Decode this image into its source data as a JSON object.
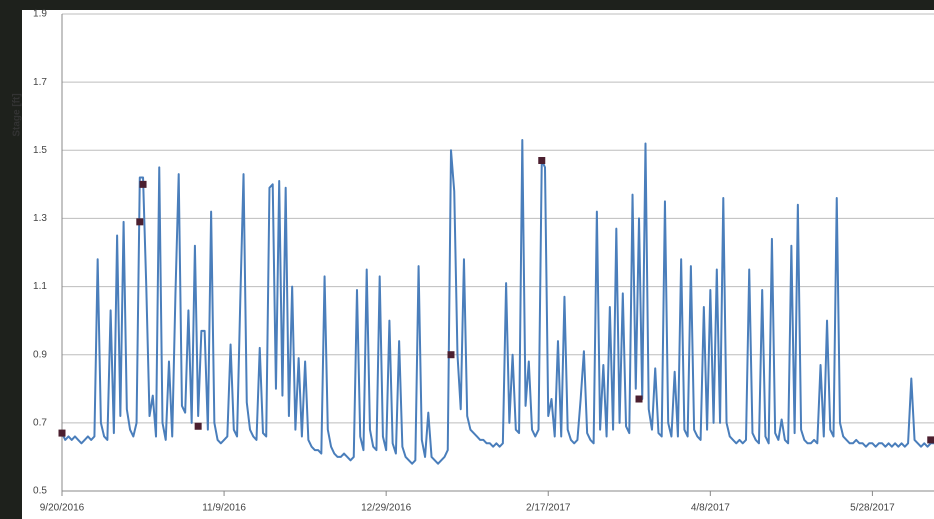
{
  "chart_data": {
    "type": "line",
    "y_label": "Stage [ft]",
    "xlim": [
      "2016-09-20",
      "2017-06-16"
    ],
    "xticks": [
      {
        "value": "2016-09-20",
        "label": "9/20/2016"
      },
      {
        "value": "2016-11-09",
        "label": "11/9/2016"
      },
      {
        "value": "2016-12-29",
        "label": "12/29/2016"
      },
      {
        "value": "2017-02-17",
        "label": "2/17/2017"
      },
      {
        "value": "2017-04-08",
        "label": "4/8/2017"
      },
      {
        "value": "2017-05-28",
        "label": "5/28/2017"
      }
    ],
    "ylim": [
      0.5,
      1.9
    ],
    "yticks": [
      0.5,
      0.7,
      0.9,
      1.1,
      1.3,
      1.5,
      1.7,
      1.9
    ],
    "grid": true,
    "series": [
      {
        "style": "line",
        "color": "#4a7ebb",
        "x": [
          "2016-09-20",
          "2016-09-21",
          "2016-09-22",
          "2016-09-23",
          "2016-09-24",
          "2016-09-25",
          "2016-09-26",
          "2016-09-27",
          "2016-09-28",
          "2016-09-29",
          "2016-09-30",
          "2016-10-01",
          "2016-10-02",
          "2016-10-03",
          "2016-10-04",
          "2016-10-05",
          "2016-10-06",
          "2016-10-07",
          "2016-10-08",
          "2016-10-09",
          "2016-10-10",
          "2016-10-11",
          "2016-10-12",
          "2016-10-13",
          "2016-10-14",
          "2016-10-15",
          "2016-10-16",
          "2016-10-17",
          "2016-10-18",
          "2016-10-19",
          "2016-10-20",
          "2016-10-21",
          "2016-10-22",
          "2016-10-23",
          "2016-10-24",
          "2016-10-25",
          "2016-10-26",
          "2016-10-27",
          "2016-10-28",
          "2016-10-29",
          "2016-10-30",
          "2016-10-31",
          "2016-11-01",
          "2016-11-02",
          "2016-11-03",
          "2016-11-04",
          "2016-11-05",
          "2016-11-06",
          "2016-11-07",
          "2016-11-08",
          "2016-11-09",
          "2016-11-10",
          "2016-11-11",
          "2016-11-12",
          "2016-11-13",
          "2016-11-14",
          "2016-11-15",
          "2016-11-16",
          "2016-11-17",
          "2016-11-18",
          "2016-11-19",
          "2016-11-20",
          "2016-11-21",
          "2016-11-22",
          "2016-11-23",
          "2016-11-24",
          "2016-11-25",
          "2016-11-26",
          "2016-11-27",
          "2016-11-28",
          "2016-11-29",
          "2016-11-30",
          "2016-12-01",
          "2016-12-02",
          "2016-12-03",
          "2016-12-04",
          "2016-12-05",
          "2016-12-06",
          "2016-12-07",
          "2016-12-08",
          "2016-12-09",
          "2016-12-10",
          "2016-12-11",
          "2016-12-12",
          "2016-12-13",
          "2016-12-14",
          "2016-12-15",
          "2016-12-16",
          "2016-12-17",
          "2016-12-18",
          "2016-12-19",
          "2016-12-20",
          "2016-12-21",
          "2016-12-22",
          "2016-12-23",
          "2016-12-24",
          "2016-12-25",
          "2016-12-26",
          "2016-12-27",
          "2016-12-28",
          "2016-12-29",
          "2016-12-30",
          "2016-12-31",
          "2017-01-01",
          "2017-01-02",
          "2017-01-03",
          "2017-01-04",
          "2017-01-05",
          "2017-01-06",
          "2017-01-07",
          "2017-01-08",
          "2017-01-09",
          "2017-01-10",
          "2017-01-11",
          "2017-01-12",
          "2017-01-13",
          "2017-01-14",
          "2017-01-15",
          "2017-01-16",
          "2017-01-17",
          "2017-01-18",
          "2017-01-19",
          "2017-01-20",
          "2017-01-21",
          "2017-01-22",
          "2017-01-23",
          "2017-01-24",
          "2017-01-25",
          "2017-01-26",
          "2017-01-27",
          "2017-01-28",
          "2017-01-29",
          "2017-01-30",
          "2017-01-31",
          "2017-02-01",
          "2017-02-02",
          "2017-02-03",
          "2017-02-04",
          "2017-02-05",
          "2017-02-06",
          "2017-02-07",
          "2017-02-08",
          "2017-02-09",
          "2017-02-10",
          "2017-02-11",
          "2017-02-12",
          "2017-02-13",
          "2017-02-14",
          "2017-02-15",
          "2017-02-16",
          "2017-02-17",
          "2017-02-18",
          "2017-02-19",
          "2017-02-20",
          "2017-02-21",
          "2017-02-22",
          "2017-02-23",
          "2017-02-24",
          "2017-02-25",
          "2017-02-26",
          "2017-02-27",
          "2017-02-28",
          "2017-03-01",
          "2017-03-02",
          "2017-03-03",
          "2017-03-04",
          "2017-03-05",
          "2017-03-06",
          "2017-03-07",
          "2017-03-08",
          "2017-03-09",
          "2017-03-10",
          "2017-03-11",
          "2017-03-12",
          "2017-03-13",
          "2017-03-14",
          "2017-03-15",
          "2017-03-16",
          "2017-03-17",
          "2017-03-18",
          "2017-03-19",
          "2017-03-20",
          "2017-03-21",
          "2017-03-22",
          "2017-03-23",
          "2017-03-24",
          "2017-03-25",
          "2017-03-26",
          "2017-03-27",
          "2017-03-28",
          "2017-03-29",
          "2017-03-30",
          "2017-03-31",
          "2017-04-01",
          "2017-04-02",
          "2017-04-03",
          "2017-04-04",
          "2017-04-05",
          "2017-04-06",
          "2017-04-07",
          "2017-04-08",
          "2017-04-09",
          "2017-04-10",
          "2017-04-11",
          "2017-04-12",
          "2017-04-13",
          "2017-04-14",
          "2017-04-15",
          "2017-04-16",
          "2017-04-17",
          "2017-04-18",
          "2017-04-19",
          "2017-04-20",
          "2017-04-21",
          "2017-04-22",
          "2017-04-23",
          "2017-04-24",
          "2017-04-25",
          "2017-04-26",
          "2017-04-27",
          "2017-04-28",
          "2017-04-29",
          "2017-04-30",
          "2017-05-01",
          "2017-05-02",
          "2017-05-03",
          "2017-05-04",
          "2017-05-05",
          "2017-05-06",
          "2017-05-07",
          "2017-05-08",
          "2017-05-09",
          "2017-05-10",
          "2017-05-11",
          "2017-05-12",
          "2017-05-13",
          "2017-05-14",
          "2017-05-15",
          "2017-05-16",
          "2017-05-17",
          "2017-05-18",
          "2017-05-19",
          "2017-05-20",
          "2017-05-21",
          "2017-05-22",
          "2017-05-23",
          "2017-05-24",
          "2017-05-25",
          "2017-05-26",
          "2017-05-27",
          "2017-05-28",
          "2017-05-29",
          "2017-05-30",
          "2017-05-31",
          "2017-06-01",
          "2017-06-02",
          "2017-06-03",
          "2017-06-04",
          "2017-06-05",
          "2017-06-06",
          "2017-06-07",
          "2017-06-08",
          "2017-06-09",
          "2017-06-10",
          "2017-06-11",
          "2017-06-12",
          "2017-06-13",
          "2017-06-14",
          "2017-06-15",
          "2017-06-16"
        ],
        "values": [
          0.67,
          0.65,
          0.66,
          0.65,
          0.66,
          0.65,
          0.64,
          0.65,
          0.66,
          0.65,
          0.66,
          1.18,
          0.7,
          0.66,
          0.65,
          1.03,
          0.67,
          1.25,
          0.72,
          1.29,
          0.74,
          0.68,
          0.66,
          0.7,
          1.42,
          1.42,
          1.1,
          0.72,
          0.78,
          0.66,
          1.45,
          0.7,
          0.65,
          0.88,
          0.66,
          1.08,
          1.43,
          0.75,
          0.73,
          1.03,
          0.7,
          1.22,
          0.72,
          0.97,
          0.97,
          0.68,
          1.32,
          0.7,
          0.65,
          0.64,
          0.65,
          0.66,
          0.93,
          0.68,
          0.66,
          1.06,
          1.43,
          0.76,
          0.68,
          0.66,
          0.65,
          0.92,
          0.67,
          0.66,
          1.39,
          1.4,
          0.8,
          1.41,
          0.78,
          1.39,
          0.72,
          1.1,
          0.68,
          0.89,
          0.66,
          0.88,
          0.65,
          0.63,
          0.62,
          0.62,
          0.61,
          1.13,
          0.68,
          0.63,
          0.61,
          0.6,
          0.6,
          0.61,
          0.6,
          0.59,
          0.6,
          1.09,
          0.66,
          0.62,
          1.15,
          0.68,
          0.63,
          0.62,
          1.13,
          0.66,
          0.62,
          1.0,
          0.64,
          0.61,
          0.94,
          0.63,
          0.6,
          0.59,
          0.58,
          0.59,
          1.16,
          0.65,
          0.6,
          0.73,
          0.6,
          0.59,
          0.58,
          0.59,
          0.6,
          0.62,
          1.5,
          1.38,
          0.9,
          0.74,
          1.18,
          0.72,
          0.68,
          0.67,
          0.66,
          0.65,
          0.65,
          0.64,
          0.64,
          0.63,
          0.64,
          0.63,
          0.64,
          1.11,
          0.7,
          0.9,
          0.68,
          0.67,
          1.53,
          0.75,
          0.88,
          0.68,
          0.66,
          0.68,
          1.47,
          1.45,
          0.72,
          0.77,
          0.66,
          0.94,
          0.66,
          1.07,
          0.68,
          0.65,
          0.64,
          0.65,
          0.77,
          0.91,
          0.67,
          0.65,
          0.64,
          1.32,
          0.68,
          0.87,
          0.66,
          1.04,
          0.68,
          1.27,
          0.7,
          1.08,
          0.69,
          0.67,
          1.37,
          0.8,
          1.3,
          0.77,
          1.52,
          0.74,
          0.68,
          0.86,
          0.67,
          0.66,
          1.35,
          0.7,
          0.66,
          0.85,
          0.66,
          1.18,
          0.68,
          0.66,
          1.16,
          0.68,
          0.66,
          0.65,
          1.04,
          0.68,
          1.09,
          0.7,
          1.15,
          0.7,
          1.36,
          0.7,
          0.66,
          0.65,
          0.64,
          0.65,
          0.64,
          0.65,
          1.15,
          0.67,
          0.65,
          0.64,
          1.09,
          0.66,
          0.64,
          1.24,
          0.67,
          0.65,
          0.71,
          0.65,
          0.64,
          1.22,
          0.67,
          1.34,
          0.68,
          0.65,
          0.64,
          0.64,
          0.65,
          0.64,
          0.87,
          0.66,
          1.0,
          0.68,
          0.66,
          1.36,
          0.7,
          0.66,
          0.65,
          0.64,
          0.64,
          0.65,
          0.64,
          0.64,
          0.63,
          0.64,
          0.64,
          0.63,
          0.64,
          0.64,
          0.63,
          0.64,
          0.63,
          0.64,
          0.63,
          0.64,
          0.63,
          0.64,
          0.83,
          0.65,
          0.64,
          0.63,
          0.64,
          0.63,
          0.64,
          0.64
        ]
      },
      {
        "style": "markers",
        "color": "#4b1f2f",
        "x": [
          "2016-09-20",
          "2016-10-14",
          "2016-10-15",
          "2016-11-01",
          "2017-01-18",
          "2017-02-15",
          "2017-03-17",
          "2017-06-15"
        ],
        "values": [
          0.67,
          1.29,
          1.4,
          0.69,
          0.9,
          1.47,
          0.77,
          0.65
        ]
      }
    ]
  }
}
